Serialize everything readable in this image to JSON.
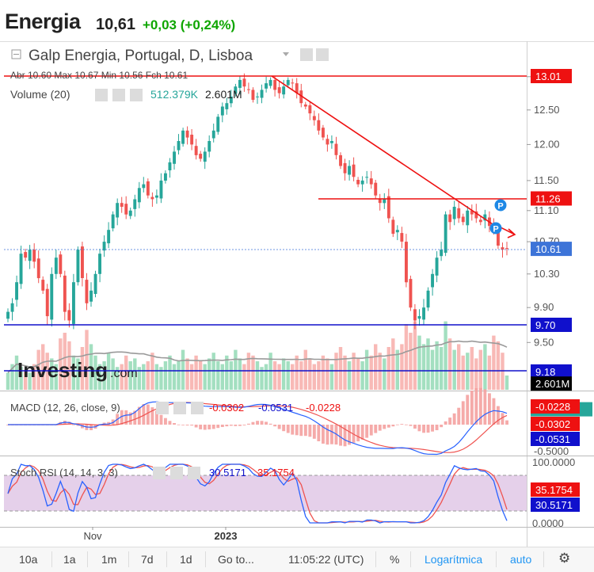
{
  "header": {
    "name": "Energia",
    "price": "10,61",
    "change": "+0,03 (+0,24%)"
  },
  "legend": {
    "title": "Galp Energia, Portugal, D, Lisboa",
    "ohlc": "Abr 10.60  Max 10.67  Min 10.56  Fch 10.61",
    "volume_label": "Volume (20)",
    "volume_value": "512.379K",
    "volume_ma": "2.601M",
    "macd_label": "MACD (12, 26, close, 9)",
    "macd_v1": "-0.0302",
    "macd_v2": "-0.0531",
    "macd_v3": "-0.0228",
    "stoch_label": "Stoch RSI (14, 14, 3, 3)",
    "stoch_v1": "30.5171",
    "stoch_v2": "35.1754",
    "watermark": "Investing",
    "watermark_suffix": ".com",
    "p_marker": "P"
  },
  "price_axis": {
    "ticks": [
      "13.00",
      "12.50",
      "12.00",
      "11.50",
      "11.10",
      "10.70",
      "10.30",
      "9.90",
      "9.50"
    ],
    "badges": [
      {
        "label": "13.01",
        "value": 13.01,
        "color": "#ee1111"
      },
      {
        "label": "11.26",
        "value": 11.26,
        "color": "#ee1111"
      },
      {
        "label": "10.61",
        "value": 10.61,
        "color": "#3d74d8"
      },
      {
        "label": "9.70",
        "value": 9.7,
        "color": "#1010cc"
      },
      {
        "label": "9.18",
        "value": 9.18,
        "color": "#1010cc"
      },
      {
        "label": "2.601M",
        "value": 9.05,
        "color": "#000000"
      },
      {
        "label": "512.379K",
        "value": 8.78,
        "color": "#26a69a"
      }
    ]
  },
  "macd_axis": {
    "ticks": [
      "-0.5000"
    ],
    "badges": [
      {
        "label": "-0.0228",
        "color": "#ee1111"
      },
      {
        "label": "-0.0302",
        "color": "#ee1111"
      },
      {
        "label": "-0.0531",
        "color": "#1010cc"
      }
    ]
  },
  "stoch_axis": {
    "ticks": [
      "100.0000",
      "0.0000"
    ],
    "badges": [
      {
        "label": "35.1754",
        "color": "#ee1111"
      },
      {
        "label": "30.5171",
        "color": "#1010cc"
      }
    ]
  },
  "time_axis": {
    "labels": [
      "Nov",
      "2023"
    ]
  },
  "toolbar": {
    "items": [
      "10a",
      "1a",
      "1m",
      "7d",
      "1d",
      "Go to...",
      "11:05:22 (UTC)",
      "%",
      "Logarítmica",
      "auto"
    ]
  },
  "chart_data": [
    {
      "type": "candlestick",
      "title": "Galp Energia, Portugal, D, Lisboa",
      "ylim": [
        9.45,
        13.1
      ],
      "last_close": 10.61,
      "trend_lines": [
        {
          "name": "resistance",
          "value": 13.01
        },
        {
          "name": "resistance",
          "value": 11.26
        },
        {
          "name": "support",
          "value": 9.7
        },
        {
          "name": "support",
          "value": 9.18
        }
      ],
      "close_series": [
        9.85,
        9.95,
        10.2,
        10.55,
        10.5,
        10.6,
        10.45,
        10.25,
        10.1,
        9.8,
        10.3,
        10.5,
        10.3,
        9.85,
        9.75,
        10.2,
        10.6,
        10.25,
        9.95,
        10.1,
        10.3,
        10.55,
        10.7,
        10.85,
        11.05,
        11.2,
        11.15,
        11.05,
        11.1,
        11.25,
        11.4,
        11.45,
        11.3,
        11.25,
        11.3,
        11.5,
        11.6,
        11.75,
        11.9,
        12.05,
        12.2,
        12.1,
        12.0,
        11.85,
        11.8,
        11.9,
        12.05,
        12.2,
        12.4,
        12.55,
        12.6,
        12.7,
        12.85,
        12.95,
        12.85,
        12.8,
        12.65,
        12.7,
        12.8,
        12.9,
        12.95,
        12.8,
        12.75,
        12.85,
        12.95,
        12.9,
        12.75,
        12.6,
        12.55,
        12.45,
        12.35,
        12.2,
        12.1,
        12.0,
        12.05,
        11.85,
        11.7,
        11.6,
        11.7,
        11.55,
        11.45,
        11.5,
        11.55,
        11.45,
        11.3,
        11.2,
        11.25,
        11.0,
        10.8,
        10.85,
        10.7,
        10.2,
        9.9,
        9.75,
        9.8,
        9.9,
        10.1,
        10.3,
        10.5,
        10.6,
        11.05,
        10.95,
        11.15,
        11.0,
        10.95,
        11.1,
        11.05,
        11.0,
        10.95,
        11.05,
        10.9,
        10.85,
        10.65,
        10.6,
        10.61
      ],
      "volume_series": [
        0.6,
        0.9,
        1.2,
        0.8,
        0.7,
        0.6,
        0.9,
        1.4,
        1.6,
        1.3,
        1.1,
        0.9,
        1.8,
        2.0,
        1.7,
        1.2,
        1.1,
        1.5,
        2.1,
        1.6,
        1.2,
        0.9,
        1.0,
        1.3,
        1.1,
        0.8,
        0.9,
        1.2,
        1.0,
        1.1,
        0.8,
        0.9,
        1.0,
        1.3,
        0.9,
        0.8,
        1.0,
        1.2,
        0.9,
        1.0,
        1.4,
        1.1,
        0.9,
        1.2,
        1.0,
        0.9,
        1.1,
        1.3,
        1.0,
        0.9,
        1.2,
        1.0,
        1.4,
        1.1,
        0.9,
        1.3,
        1.2,
        1.0,
        0.8,
        0.9,
        1.3,
        1.0,
        0.9,
        1.1,
        1.0,
        0.9,
        1.2,
        1.0,
        1.4,
        1.1,
        0.9,
        1.0,
        1.2,
        1.1,
        0.9,
        1.3,
        1.5,
        1.2,
        1.0,
        1.3,
        1.1,
        1.0,
        1.4,
        1.2,
        1.6,
        1.3,
        1.1,
        1.5,
        1.8,
        1.4,
        1.6,
        2.3,
        2.0,
        2.4,
        1.9,
        1.6,
        1.8,
        1.4,
        1.7,
        1.5,
        2.4,
        1.8,
        1.4,
        1.6,
        1.2,
        1.3,
        1.5,
        1.1,
        1.4,
        1.6,
        1.2,
        1.9,
        1.7,
        1.3,
        0.5
      ]
    },
    {
      "type": "line",
      "title": "MACD (12, 26, close, 9)",
      "series": [
        {
          "name": "MACD",
          "last": -0.0302
        },
        {
          "name": "Signal",
          "last": -0.0531
        },
        {
          "name": "Histogram",
          "last": -0.0228
        }
      ]
    },
    {
      "type": "line",
      "title": "Stoch RSI (14, 14, 3, 3)",
      "ylim": [
        0,
        100
      ],
      "series": [
        {
          "name": "K",
          "last": 30.5171
        },
        {
          "name": "D",
          "last": 35.1754
        }
      ]
    }
  ],
  "colors": {
    "up": "#26a69a",
    "down": "#ef5350",
    "resistance": "#ee1111",
    "support": "#1010cc",
    "last_price": "#3d74d8"
  }
}
